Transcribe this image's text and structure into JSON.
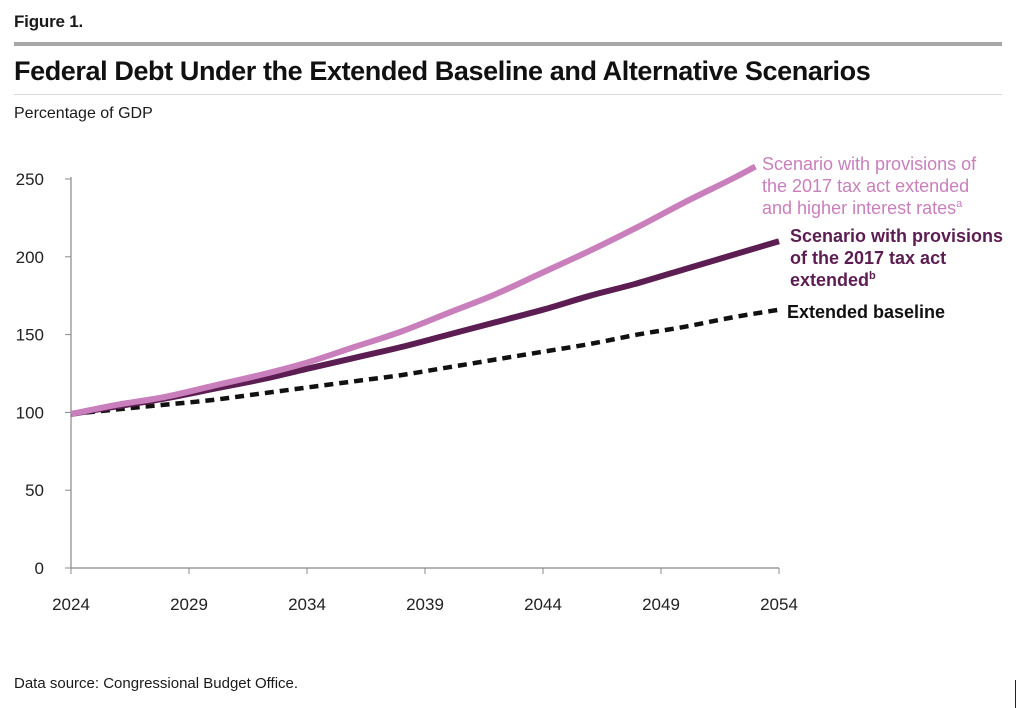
{
  "figure_label": "Figure 1.",
  "data_source": "Data source: Congressional Budget Office.",
  "colors": {
    "high_rates": "#c97fbb",
    "tax_extended": "#5c1e52",
    "baseline": "#111111",
    "axis": "#888888"
  },
  "chart_data": {
    "type": "line",
    "title": "Federal Debt Under the Extended Baseline and Alternative Scenarios",
    "ylabel": "Percentage of GDP",
    "xlabel": "",
    "xlim": [
      2024,
      2054
    ],
    "ylim": [
      0,
      250
    ],
    "x_ticks": [
      2024,
      2029,
      2034,
      2039,
      2044,
      2049,
      2054
    ],
    "y_ticks": [
      0,
      50,
      100,
      150,
      200,
      250
    ],
    "grid": false,
    "series": [
      {
        "key": "high_rates",
        "name_lines": [
          "Scenario with provisions of",
          "the 2017 tax act extended",
          "and higher interest rates"
        ],
        "footnote": "a",
        "style": "solid",
        "x": [
          2024,
          2026,
          2028,
          2030,
          2032,
          2034,
          2036,
          2038,
          2040,
          2042,
          2044,
          2046,
          2048,
          2050,
          2052,
          2053
        ],
        "values": [
          99,
          105,
          110,
          117,
          124,
          132,
          142,
          152,
          164,
          176,
          190,
          204,
          219,
          235,
          250,
          258
        ]
      },
      {
        "key": "tax_extended",
        "name_lines": [
          "Scenario with provisions",
          "of the 2017 tax act",
          "extended"
        ],
        "footnote": "b",
        "style": "solid",
        "x": [
          2024,
          2026,
          2028,
          2030,
          2032,
          2034,
          2036,
          2038,
          2040,
          2042,
          2044,
          2046,
          2048,
          2050,
          2052,
          2054
        ],
        "values": [
          99,
          104,
          109,
          115,
          121,
          128,
          135,
          142,
          150,
          158,
          166,
          175,
          183,
          192,
          201,
          210
        ]
      },
      {
        "key": "baseline",
        "name_lines": [
          "Extended baseline"
        ],
        "footnote": "",
        "style": "dashed",
        "x": [
          2024,
          2026,
          2028,
          2030,
          2032,
          2034,
          2036,
          2038,
          2040,
          2042,
          2044,
          2046,
          2048,
          2050,
          2052,
          2054
        ],
        "values": [
          99,
          102,
          105,
          108,
          112,
          116,
          120,
          124,
          129,
          134,
          139,
          144,
          150,
          155,
          161,
          166
        ]
      }
    ]
  }
}
